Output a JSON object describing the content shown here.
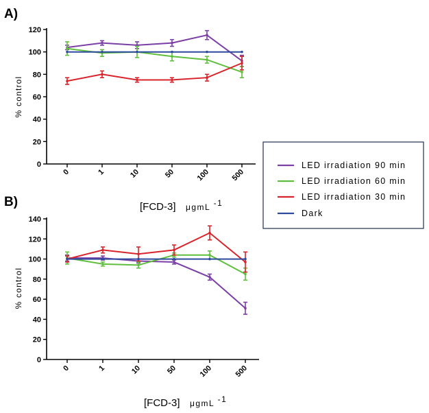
{
  "legend": {
    "entries": [
      {
        "name": "LED irradiation 90 min",
        "color": "#7b3fa6"
      },
      {
        "name": "LED irradiation 60 min",
        "color": "#5fbf3c"
      },
      {
        "name": "LED irradiation 30 min",
        "color": "#d9232a"
      },
      {
        "name": "Dark",
        "color": "#2e4a9e"
      }
    ]
  },
  "chart_data": [
    {
      "panel": "A)",
      "type": "line",
      "categories": [
        "0",
        "1",
        "10",
        "50",
        "100",
        "500"
      ],
      "ylabel": "% control",
      "xlabel_main": "[FCD-3]",
      "xlabel_unit": "μgmL",
      "xlabel_unit_exp": "-1",
      "ylim": [
        0,
        120
      ],
      "yticks": [
        0,
        20,
        40,
        60,
        80,
        100,
        120
      ],
      "series": [
        {
          "name": "LED irradiation 90 min",
          "color": "#7b3fa6",
          "values": [
            104,
            108,
            106,
            108,
            115,
            92
          ],
          "errors": [
            2,
            2,
            3,
            3,
            4,
            5
          ]
        },
        {
          "name": "LED irradiation 60 min",
          "color": "#5fbf3c",
          "values": [
            103,
            99,
            100,
            96,
            93,
            82
          ],
          "errors": [
            6,
            3,
            5,
            4,
            3,
            5
          ]
        },
        {
          "name": "LED irradiation 30 min",
          "color": "#d9232a",
          "values": [
            74,
            80,
            75,
            75,
            77,
            90
          ],
          "errors": [
            3,
            3,
            2,
            2,
            3,
            6
          ]
        },
        {
          "name": "Dark",
          "color": "#2e4a9e",
          "values": [
            100,
            100,
            100,
            100,
            100,
            100
          ],
          "errors": [
            0,
            0,
            0,
            0,
            0,
            0
          ]
        }
      ]
    },
    {
      "panel": "B)",
      "type": "line",
      "categories": [
        "0",
        "1",
        "10",
        "50",
        "100",
        "500"
      ],
      "ylabel": "% control",
      "xlabel_main": "[FCD-3]",
      "xlabel_unit": "μgmL",
      "xlabel_unit_exp": "-1",
      "ylim": [
        0,
        140
      ],
      "yticks": [
        0,
        20,
        40,
        60,
        80,
        100,
        120,
        140
      ],
      "series": [
        {
          "name": "LED irradiation 90 min",
          "color": "#7b3fa6",
          "values": [
            101,
            101,
            98,
            97,
            82,
            51
          ],
          "errors": [
            3,
            2,
            2,
            2,
            3,
            6
          ]
        },
        {
          "name": "LED irradiation 60 min",
          "color": "#5fbf3c",
          "values": [
            101,
            95,
            94,
            104,
            104,
            85
          ],
          "errors": [
            6,
            2,
            3,
            2,
            4,
            6
          ]
        },
        {
          "name": "LED irradiation 30 min",
          "color": "#d9232a",
          "values": [
            100,
            109,
            105,
            109,
            126,
            97
          ],
          "errors": [
            3,
            3,
            7,
            5,
            7,
            10
          ]
        },
        {
          "name": "Dark",
          "color": "#2e4a9e",
          "values": [
            100,
            100,
            100,
            100,
            100,
            100
          ],
          "errors": [
            0,
            0,
            0,
            0,
            0,
            0
          ]
        }
      ]
    }
  ]
}
